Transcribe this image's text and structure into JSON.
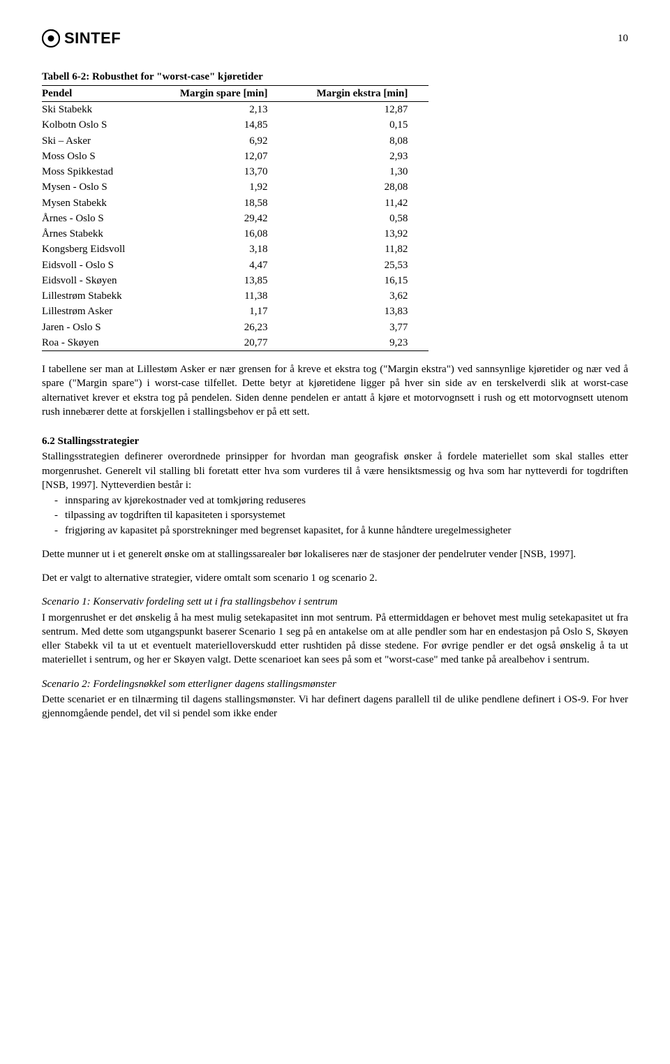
{
  "header": {
    "logo_text": "SINTEF",
    "page_number": "10"
  },
  "table": {
    "title": "Tabell 6-2: Robusthet for \"worst-case\" kjøretider",
    "columns": [
      "Pendel",
      "Margin spare [min]",
      "Margin ekstra [min]"
    ],
    "rows": [
      [
        "Ski Stabekk",
        "2,13",
        "12,87"
      ],
      [
        "Kolbotn Oslo S",
        "14,85",
        "0,15"
      ],
      [
        "Ski – Asker",
        "6,92",
        "8,08"
      ],
      [
        "Moss Oslo S",
        "12,07",
        "2,93"
      ],
      [
        "Moss Spikkestad",
        "13,70",
        "1,30"
      ],
      [
        "Mysen - Oslo S",
        "1,92",
        "28,08"
      ],
      [
        "Mysen Stabekk",
        "18,58",
        "11,42"
      ],
      [
        "Årnes - Oslo S",
        "29,42",
        "0,58"
      ],
      [
        "Årnes Stabekk",
        "16,08",
        "13,92"
      ],
      [
        "Kongsberg Eidsvoll",
        "3,18",
        "11,82"
      ],
      [
        "Eidsvoll - Oslo S",
        "4,47",
        "25,53"
      ],
      [
        "Eidsvoll - Skøyen",
        "13,85",
        "16,15"
      ],
      [
        "Lillestrøm Stabekk",
        "11,38",
        "3,62"
      ],
      [
        "Lillestrøm Asker",
        "1,17",
        "13,83"
      ],
      [
        "Jaren - Oslo S",
        "26,23",
        "3,77"
      ],
      [
        "Roa - Skøyen",
        "20,77",
        "9,23"
      ]
    ]
  },
  "para1": "I tabellene ser man at Lillestøm Asker er nær grensen for å kreve et ekstra tog (\"Margin ekstra\") ved sannsynlige kjøretider og nær ved å spare (\"Margin spare\") i worst-case tilfellet. Dette betyr at kjøretidene ligger på hver sin side av en terskelverdi slik at worst-case alternativet krever et ekstra tog på pendelen. Siden denne pendelen er antatt å kjøre et motorvognsett i rush og ett motorvognsett utenom rush innebærer dette at forskjellen i stallingsbehov er på ett sett.",
  "section62": {
    "heading": "6.2 Stallingsstrategier",
    "intro": "Stallingsstrategien definerer overordnede prinsipper for hvordan man geografisk ønsker å fordele materiellet som skal stalles etter morgenrushet. Generelt vil stalling bli foretatt etter hva som vurderes til å være hensiktsmessig og hva som har nytteverdi for togdriften [NSB, 1997]. Nytteverdien består i:",
    "bullets": [
      "innsparing av kjørekostnader ved at tomkjøring reduseres",
      "tilpassing av togdriften til kapasiteten i sporsystemet",
      "frigjøring av kapasitet på sporstrekninger med begrenset kapasitet, for å kunne håndtere uregelmessigheter"
    ],
    "after_bullets": "Dette munner ut i et generelt ønske om at stallingssarealer bør lokaliseres nær de stasjoner der pendelruter vender [NSB, 1997].",
    "alt_line": "Det er valgt to alternative strategier, videre omtalt som scenario 1 og scenario 2."
  },
  "scenario1": {
    "title": "Scenario 1: Konservativ fordeling sett ut i fra stallingsbehov i sentrum",
    "body": "I morgenrushet er det ønskelig å ha mest mulig setekapasitet inn mot sentrum. På ettermiddagen er behovet mest mulig setekapasitet ut fra sentrum. Med dette som utgangspunkt baserer Scenario 1 seg på en antakelse om at alle pendler som har en endestasjon på Oslo S, Skøyen eller Stabekk vil ta ut et eventuelt materielloverskudd etter rushtiden på disse stedene. For øvrige pendler er det også ønskelig å ta ut materiellet i sentrum, og her er Skøyen valgt. Dette scenarioet kan sees på som et \"worst-case\" med tanke på arealbehov i sentrum."
  },
  "scenario2": {
    "title": "Scenario 2: Fordelingsnøkkel som etterligner dagens stallingsmønster",
    "body": "Dette scenariet er en tilnærming til dagens stallingsmønster. Vi har definert dagens parallell til de ulike pendlene definert i OS-9. For hver gjennomgående pendel, det vil si pendel som ikke ender"
  }
}
